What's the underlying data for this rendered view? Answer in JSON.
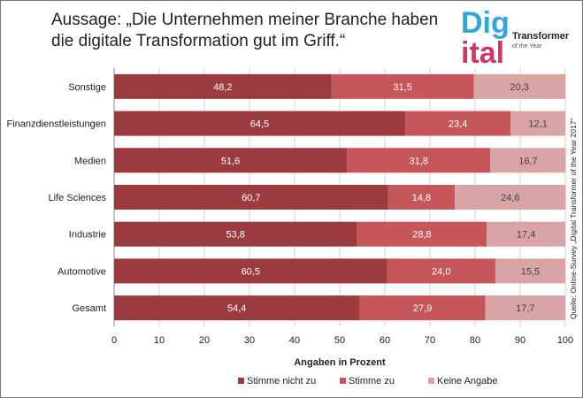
{
  "title": "Aussage: „Die Unternehmen meiner Branche haben\ndie digitale Transformation gut im Griff.“",
  "logo": {
    "text_main": "Digital",
    "text_sub1": "Transformer",
    "text_sub2": "of the Year",
    "colors": [
      "#2ea8d8",
      "#d6336c"
    ]
  },
  "source": "Quelle: Online-Survey „Digital Transformer of the Year 2017“",
  "chart_data": {
    "type": "bar",
    "orientation": "horizontal",
    "stacked": true,
    "categories": [
      "Sonstige",
      "Finanzdienstleistungen",
      "Medien",
      "Life Sciences",
      "Industrie",
      "Automotive",
      "Gesamt"
    ],
    "series": [
      {
        "name": "Stimme nicht zu",
        "color": "#9b3b3f",
        "values": [
          48.2,
          64.5,
          51.6,
          60.7,
          53.8,
          60.5,
          54.4
        ],
        "labels": [
          "48,2",
          "64,5",
          "51,6",
          "60,7",
          "53,8",
          "60,5",
          "54,4"
        ]
      },
      {
        "name": "Stimme zu",
        "color": "#c55659",
        "values": [
          31.5,
          23.4,
          31.8,
          14.8,
          28.8,
          24.0,
          27.9
        ],
        "labels": [
          "31,5",
          "23,4",
          "31,8",
          "14,8",
          "28,8",
          "24,0",
          "27,9"
        ]
      },
      {
        "name": "Keine Angabe",
        "color": "#d8a4a6",
        "values": [
          20.3,
          12.1,
          16.7,
          24.6,
          17.4,
          15.5,
          17.7
        ],
        "labels": [
          "20,3",
          "12,1",
          "16,7",
          "24,6",
          "17,4",
          "15,5",
          "17,7"
        ]
      }
    ],
    "xlabel": "Angaben in Prozent",
    "xlim": [
      0,
      100
    ],
    "xticks": [
      0,
      10,
      20,
      30,
      40,
      50,
      60,
      70,
      80,
      90,
      100
    ],
    "grid": true,
    "legend": "bottom"
  }
}
